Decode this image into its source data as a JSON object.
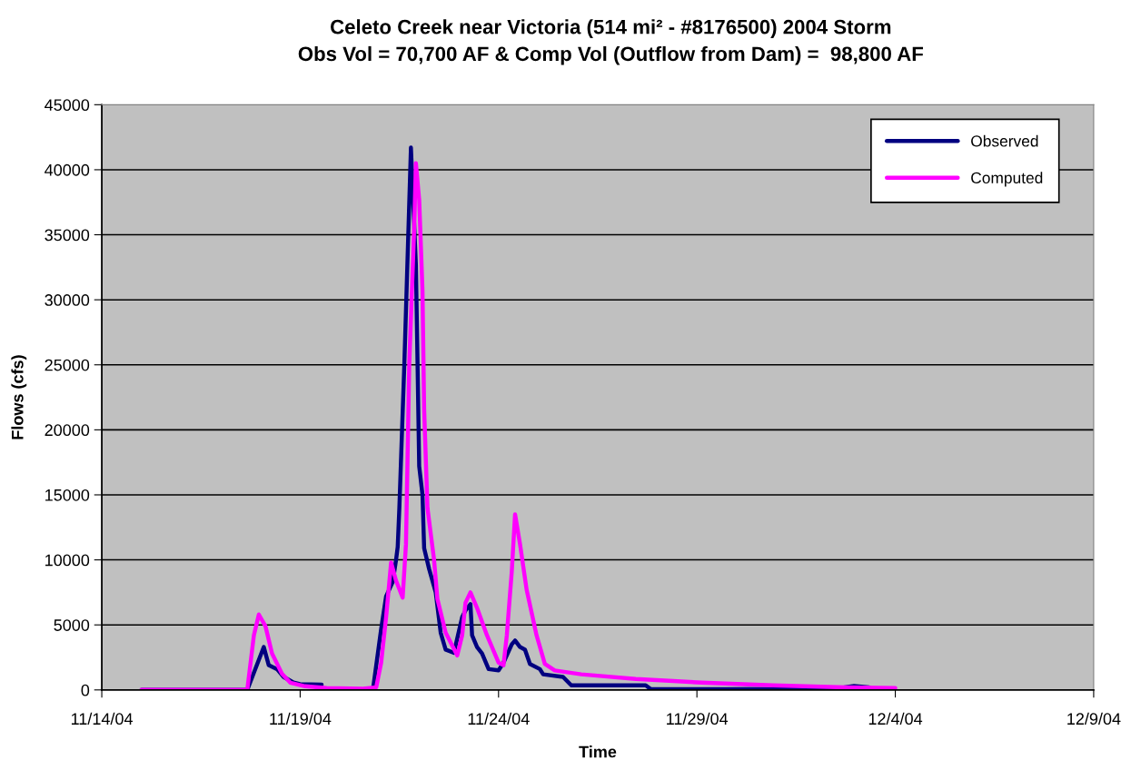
{
  "chart_data": {
    "type": "line",
    "title": "Celeto Creek near Victoria (514 mi² - #8176500) 2004 Storm",
    "subtitle": "Obs Vol = 70,700 AF & Comp Vol (Outflow from Dam) =  98,800 AF",
    "xlabel": "Time",
    "ylabel": "Flows (cfs)",
    "series": [
      {
        "name": "Observed",
        "color": "#000080",
        "x": [
          "2004-11-15T00:00",
          "2004-11-17T16:00",
          "2004-11-18T02:00",
          "2004-11-18T05:00",
          "2004-11-18T10:00",
          "2004-11-18T14:00",
          "2004-11-18T20:00",
          "2004-11-19T00:00",
          "2004-11-19T13:00",
          "2004-11-19T16:00",
          "2004-11-20T20:00",
          "2004-11-21T01:00",
          "2004-11-21T04:00",
          "2004-11-21T08:00",
          "2004-11-21T10:00",
          "2004-11-21T11:00",
          "2004-11-21T12:00",
          "2004-11-21T15:00",
          "2004-11-21T19:00",
          "2004-11-21T22:00",
          "2004-11-21T23:00",
          "2004-11-22T00:00",
          "2004-11-22T02:00",
          "2004-11-22T03:00",
          "2004-11-22T06:00",
          "2004-11-22T10:00",
          "2004-11-22T13:00",
          "2004-11-22T16:00",
          "2004-11-22T21:00",
          "2004-11-23T02:00",
          "2004-11-23T04:00",
          "2004-11-23T07:00",
          "2004-11-23T08:00",
          "2004-11-23T11:00",
          "2004-11-23T14:00",
          "2004-11-23T18:00",
          "2004-11-24T00:00",
          "2004-11-24T03:00",
          "2004-11-24T08:00",
          "2004-11-24T10:00",
          "2004-11-24T13:00",
          "2004-11-24T16:00",
          "2004-11-24T19:00",
          "2004-11-25T01:00",
          "2004-11-25T03:00",
          "2004-11-25T15:00",
          "2004-11-25T20:00",
          "2004-11-27T17:00",
          "2004-11-27T20:00",
          "2004-11-29T18:00",
          "2004-12-02T12:00",
          "2004-12-02T23:00",
          "2004-12-03T08:00",
          "2004-12-03T10:00"
        ],
        "values": [
          0,
          0,
          3300,
          1900,
          1600,
          1000,
          560,
          450,
          400,
          null,
          0,
          4700,
          7200,
          8300,
          10000,
          11000,
          14000,
          25000,
          41700,
          32700,
          25100,
          17200,
          15000,
          10900,
          9300,
          7500,
          4400,
          3100,
          2850,
          5600,
          6100,
          6600,
          4200,
          3300,
          2800,
          1600,
          1500,
          2100,
          3500,
          3800,
          3300,
          3100,
          2000,
          1600,
          1200,
          1000,
          350,
          350,
          70,
          50,
          100,
          300,
          200,
          50
        ]
      },
      {
        "name": "Computed",
        "color": "#ff00ff",
        "x": [
          "2004-11-15T00:00",
          "2004-11-17T16:00",
          "2004-11-17T20:00",
          "2004-11-17T23:00",
          "2004-11-18T03:00",
          "2004-11-18T07:00",
          "2004-11-18T13:00",
          "2004-11-18T18:00",
          "2004-11-19T03:00",
          "2004-11-19T16:00",
          "2004-11-20T14:00",
          "2004-11-20T22:00",
          "2004-11-21T01:00",
          "2004-11-21T04:00",
          "2004-11-21T07:00",
          "2004-11-21T10:00",
          "2004-11-21T14:00",
          "2004-11-21T16:00",
          "2004-11-21T18:00",
          "2004-11-21T21:00",
          "2004-11-21T22:00",
          "2004-11-22T00:00",
          "2004-11-22T02:00",
          "2004-11-22T03:00",
          "2004-11-22T05:00",
          "2004-11-22T09:00",
          "2004-11-22T11:00",
          "2004-11-22T16:00",
          "2004-11-22T23:00",
          "2004-11-23T02:00",
          "2004-11-23T04:00",
          "2004-11-23T07:00",
          "2004-11-23T11:00",
          "2004-11-23T17:00",
          "2004-11-24T00:00",
          "2004-11-24T03:00",
          "2004-11-24T05:00",
          "2004-11-24T08:00",
          "2004-11-24T10:00",
          "2004-11-24T13:00",
          "2004-11-24T17:00",
          "2004-11-24T23:00",
          "2004-11-25T04:00",
          "2004-11-25T10:00",
          "2004-11-26T02:00",
          "2004-11-27T11:00",
          "2004-11-29T03:00",
          "2004-11-30T22:00",
          "2004-12-02T18:00",
          "2004-12-04T00:00"
        ],
        "values": [
          0,
          0,
          4200,
          5800,
          4900,
          2800,
          1250,
          560,
          280,
          140,
          100,
          200,
          2100,
          5600,
          9800,
          8400,
          7100,
          11200,
          25100,
          35600,
          40500,
          37700,
          30700,
          21600,
          14000,
          10000,
          7000,
          4400,
          2650,
          4200,
          6700,
          7500,
          6300,
          4200,
          2100,
          1900,
          4200,
          9100,
          13500,
          11200,
          7700,
          4200,
          2000,
          1500,
          1200,
          840,
          560,
          350,
          200,
          140
        ]
      }
    ],
    "xlim": [
      "2004-11-14",
      "2004-12-09"
    ],
    "xticks": [
      {
        "value": "2004-11-14",
        "label": "11/14/04"
      },
      {
        "value": "2004-11-19",
        "label": "11/19/04"
      },
      {
        "value": "2004-11-24",
        "label": "11/24/04"
      },
      {
        "value": "2004-11-29",
        "label": "11/29/04"
      },
      {
        "value": "2004-12-04",
        "label": "12/4/04"
      },
      {
        "value": "2004-12-09",
        "label": "12/9/04"
      }
    ],
    "ylim": [
      0,
      45000
    ],
    "yticks": [
      0,
      5000,
      10000,
      15000,
      20000,
      25000,
      30000,
      35000,
      40000,
      45000
    ],
    "grid": "y",
    "legend": "top right",
    "marker": "none",
    "line_style": "solid"
  }
}
